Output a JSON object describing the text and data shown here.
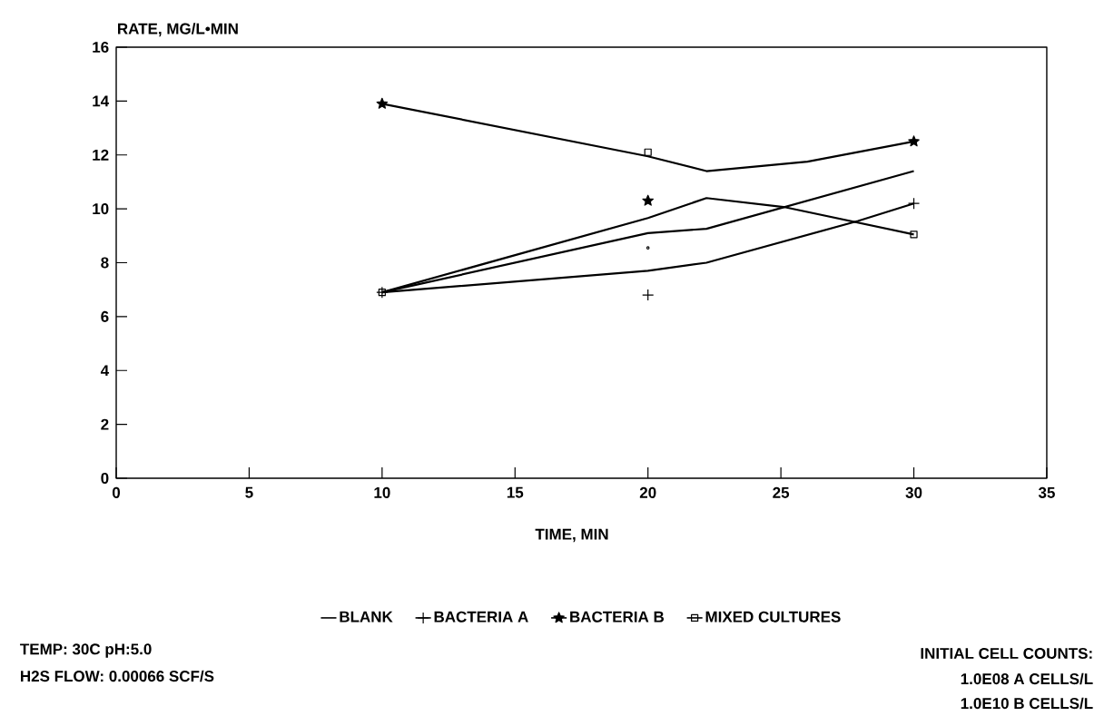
{
  "chart_data": {
    "type": "line",
    "xlabel": "TIME, MIN",
    "ylabel": "RATE, MG/L•MIN",
    "xlim": [
      0,
      35
    ],
    "ylim": [
      0,
      16
    ],
    "xticks": [
      0,
      5,
      10,
      15,
      20,
      25,
      30,
      35
    ],
    "yticks": [
      0,
      2,
      4,
      6,
      8,
      10,
      12,
      14,
      16
    ],
    "grid": false,
    "legend": "bottom",
    "line_style": "solid",
    "series": [
      {
        "color": "#000000",
        "marker": "none",
        "x": [
          10,
          20,
          22.2,
          30
        ],
        "values": [
          6.9,
          9.1,
          9.26,
          11.4
        ]
      },
      {
        "color": "#000000",
        "marker": "none",
        "x": [
          10,
          20,
          22.2,
          27.9,
          30
        ],
        "values": [
          6.9,
          7.7,
          8.0,
          9.55,
          10.2
        ]
      },
      {
        "color": "#000000",
        "marker": "none",
        "x": [
          10,
          20,
          22.2,
          26,
          30
        ],
        "values": [
          13.9,
          11.95,
          11.4,
          11.75,
          12.5
        ]
      },
      {
        "color": "#000000",
        "marker": "none",
        "x": [
          10,
          20,
          22.2,
          25.1,
          30
        ],
        "values": [
          6.9,
          9.66,
          10.4,
          10.07,
          9.05
        ]
      },
      {
        "name": "BLANK",
        "type": "scatter",
        "color": "#000000",
        "marker": "circle",
        "x": [
          20
        ],
        "values": [
          8.55
        ]
      },
      {
        "name": "BACTERIA A",
        "type": "scatter",
        "color": "#000000",
        "marker": "cross",
        "x": [
          10,
          20,
          30
        ],
        "values": [
          6.9,
          6.8,
          10.2
        ]
      },
      {
        "name": "BACTERIA B",
        "type": "scatter",
        "color": "#000000",
        "marker": "star",
        "x": [
          10,
          20,
          30
        ],
        "values": [
          13.9,
          10.3,
          12.5
        ]
      },
      {
        "name": "MIXED CULTURES",
        "type": "scatter",
        "color": "#000000",
        "marker": "square",
        "x": [
          10,
          20,
          30
        ],
        "values": [
          6.9,
          12.1,
          9.05
        ]
      }
    ],
    "annotations": [
      "TEMP: 30C   pH:5.0",
      "H2S FLOW: 0.00066 SCF/S",
      "INITIAL CELL COUNTS:",
      "1.0E08 A CELLS/L",
      "1.0E10 B CELLS/L"
    ]
  }
}
